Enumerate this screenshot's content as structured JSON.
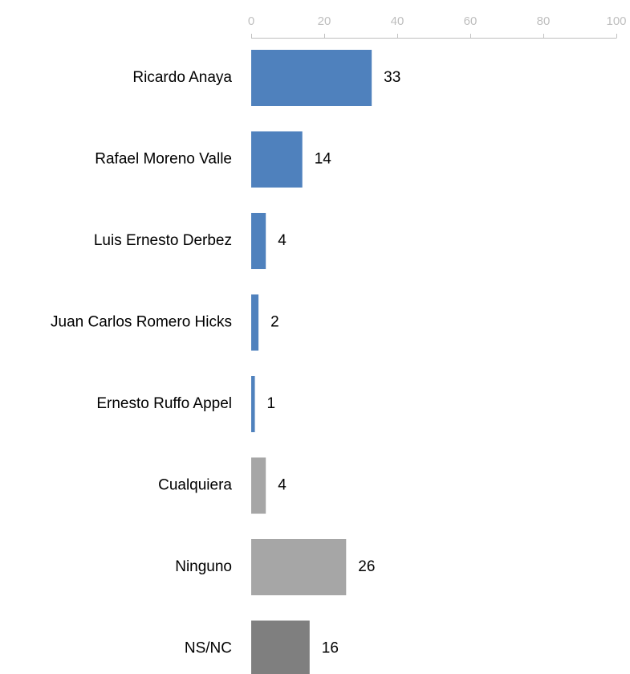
{
  "chart_data": {
    "type": "bar",
    "orientation": "horizontal",
    "title": "",
    "xlabel": "",
    "ylabel": "",
    "xlim": [
      0,
      100
    ],
    "ticks": [
      0,
      20,
      40,
      60,
      80,
      100
    ],
    "axis_position": "top",
    "grid": false,
    "legend": "none",
    "categories": [
      "Ricardo Anaya",
      "Rafael Moreno Valle",
      "Luis Ernesto Derbez",
      "Juan Carlos Romero Hicks",
      "Ernesto Ruffo Appel",
      "Cualquiera",
      "Ninguno",
      "NS/NC"
    ],
    "values": [
      33,
      14,
      4,
      2,
      1,
      4,
      26,
      16
    ],
    "bar_colors": [
      "#4f81bd",
      "#4f81bd",
      "#4f81bd",
      "#4f81bd",
      "#4f81bd",
      "#a6a6a6",
      "#a6a6a6",
      "#7f7f7f"
    ],
    "colors": {
      "axis": "#bfbfbf",
      "tick_label": "#bfbfbf",
      "text": "#000000"
    }
  }
}
